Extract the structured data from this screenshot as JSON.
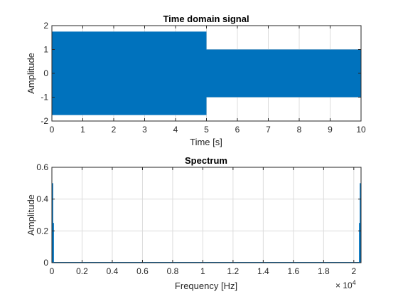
{
  "figure": {
    "background": "#ffffff",
    "line_color": "#0072bd"
  },
  "chart_data": [
    {
      "type": "area",
      "title": "Time domain signal",
      "xlabel": "Time [s]",
      "ylabel": "Amplitude",
      "xlim": [
        0,
        10
      ],
      "ylim": [
        -2,
        2
      ],
      "xticks": [
        0,
        1,
        2,
        3,
        4,
        5,
        6,
        7,
        8,
        9,
        10
      ],
      "yticks": [
        -2,
        -1,
        0,
        1,
        2
      ],
      "xtick_labels": [
        "0",
        "1",
        "2",
        "3",
        "4",
        "5",
        "6",
        "7",
        "8",
        "9",
        "10"
      ],
      "ytick_labels": [
        "-2",
        "-1",
        "0",
        "1",
        "2"
      ],
      "grid": true,
      "series": [
        {
          "color": "#0072bd",
          "segments": [
            {
              "x_start": 0,
              "x_end": 5,
              "y_min": -1.75,
              "y_max": 1.75
            },
            {
              "x_start": 5,
              "x_end": 10,
              "y_min": -1.0,
              "y_max": 1.0
            }
          ]
        }
      ]
    },
    {
      "type": "line",
      "title": "Spectrum",
      "xlabel": "Frequency [Hz]",
      "ylabel": "Amplitude",
      "xlim": [
        0,
        20480
      ],
      "ylim": [
        0,
        0.6
      ],
      "xticks": [
        0,
        2000,
        4000,
        6000,
        8000,
        10000,
        12000,
        14000,
        16000,
        18000,
        20000
      ],
      "yticks": [
        0,
        0.2,
        0.4,
        0.6
      ],
      "xtick_labels": [
        "0",
        "0.2",
        "0.4",
        "0.6",
        "0.8",
        "1",
        "1.2",
        "1.4",
        "1.6",
        "1.8",
        "2"
      ],
      "ytick_labels": [
        "0",
        "0.2",
        "0.4",
        "0.6"
      ],
      "x_exponent_base": "× 10",
      "x_exponent_power": "4",
      "grid": true,
      "series": [
        {
          "color": "#0072bd",
          "peaks": [
            {
              "x": 50,
              "y": 0.5
            },
            {
              "x": 100,
              "y": 0.25
            },
            {
              "x": 20380,
              "y": 0.25
            },
            {
              "x": 20430,
              "y": 0.5
            }
          ]
        }
      ]
    }
  ]
}
